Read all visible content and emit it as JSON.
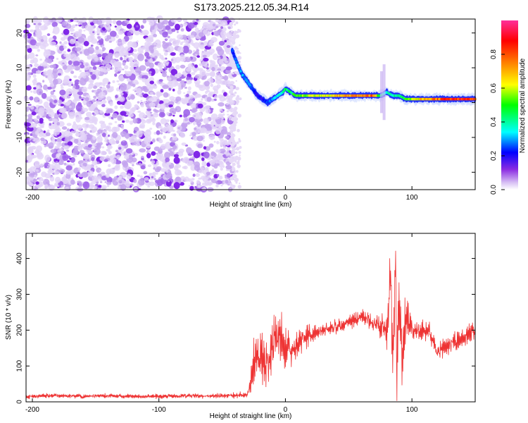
{
  "page": {
    "title": "S173.2025.212.05.34.R14"
  },
  "colors": {
    "background": "#ffffff",
    "axis": "#000000",
    "snr_line": "#ee3333",
    "colormap_stops": [
      "#ffffff",
      "#8a2be2",
      "#0000ff",
      "#00ffff",
      "#00ff00",
      "#ffff00",
      "#ff7f00",
      "#ff0000",
      "#ff1493"
    ]
  },
  "chart_data": [
    {
      "type": "heatmap",
      "title": "S173.2025.212.05.34.R14",
      "xlabel": "Height of straight line (km)",
      "ylabel": "Frequency (Hz)",
      "xlim": [
        -205,
        150
      ],
      "ylim": [
        -25,
        24
      ],
      "x_ticks": [
        -200,
        -100,
        0,
        100
      ],
      "x_tick_labels": [
        "-200",
        "-100",
        "0",
        "100"
      ],
      "y_ticks": [
        -20,
        -10,
        0,
        10,
        20
      ],
      "y_tick_labels": [
        "-20",
        "-10",
        "0",
        "10",
        "20"
      ],
      "noise_region": {
        "x_from": -205,
        "x_to": -40,
        "description_level": 0.15
      },
      "signal_track": {
        "x": [
          -42,
          -38,
          -34,
          -30,
          -26,
          -22,
          -18,
          -14,
          -10,
          -6,
          -2,
          0,
          4,
          8,
          12,
          20,
          30,
          40,
          50,
          60,
          70,
          75,
          80,
          85,
          90,
          95,
          100,
          110,
          120,
          130,
          140,
          150
        ],
        "y": [
          15,
          11,
          8,
          6,
          4,
          2,
          1,
          0,
          1,
          2,
          3,
          4,
          3,
          2,
          2,
          2,
          2,
          2,
          2,
          2,
          2,
          2,
          3,
          2,
          2,
          1,
          1,
          1,
          1,
          1,
          1,
          1
        ],
        "amplitude": [
          0.25,
          0.3,
          0.3,
          0.3,
          0.25,
          0.2,
          0.2,
          0.25,
          0.3,
          0.35,
          0.4,
          0.45,
          0.45,
          0.5,
          0.55,
          0.6,
          0.65,
          0.7,
          0.75,
          0.8,
          0.8,
          0.4,
          0.35,
          0.4,
          0.45,
          0.5,
          0.6,
          0.7,
          0.8,
          0.85,
          0.85,
          0.85
        ]
      },
      "colorbar": {
        "label": "Normalized spectral amplitude",
        "range": [
          0,
          1
        ],
        "ticks": [
          0.0,
          0.2,
          0.4,
          0.6,
          0.8
        ],
        "tick_labels": [
          "0.0",
          "0.2",
          "0.4",
          "0.6",
          "0.8"
        ]
      }
    },
    {
      "type": "line",
      "xlabel": "Height of straight line (km)",
      "ylabel": "SNR (10 * v/v)",
      "xlim": [
        -205,
        150
      ],
      "ylim": [
        0,
        470
      ],
      "x_ticks": [
        -200,
        -100,
        0,
        100
      ],
      "x_tick_labels": [
        "-200",
        "-100",
        "0",
        "100"
      ],
      "y_ticks": [
        0,
        100,
        200,
        300,
        400
      ],
      "y_tick_labels": [
        "0",
        "100",
        "200",
        "300",
        "400"
      ],
      "series": [
        {
          "color": "#ee3333",
          "x": [
            -205,
            -180,
            -160,
            -140,
            -120,
            -100,
            -80,
            -60,
            -40,
            -30,
            -27,
            -25,
            -20,
            -15,
            -10,
            -5,
            0,
            5,
            10,
            20,
            30,
            40,
            50,
            60,
            70,
            75,
            80,
            83,
            85,
            87,
            88,
            90,
            92,
            95,
            100,
            110,
            115,
            120,
            130,
            140,
            150
          ],
          "y": [
            15,
            18,
            15,
            17,
            16,
            15,
            17,
            16,
            18,
            20,
            60,
            120,
            130,
            100,
            160,
            180,
            160,
            140,
            170,
            190,
            200,
            210,
            220,
            240,
            220,
            210,
            200,
            350,
            150,
            420,
            80,
            330,
            120,
            240,
            200,
            200,
            190,
            140,
            160,
            180,
            200
          ],
          "noise_amplitude": [
            6,
            6,
            6,
            6,
            6,
            6,
            6,
            6,
            8,
            10,
            40,
            60,
            70,
            80,
            80,
            70,
            60,
            50,
            40,
            25,
            20,
            20,
            20,
            20,
            20,
            30,
            60,
            90,
            100,
            120,
            120,
            100,
            80,
            60,
            30,
            25,
            25,
            30,
            25,
            25,
            25
          ]
        }
      ]
    }
  ]
}
